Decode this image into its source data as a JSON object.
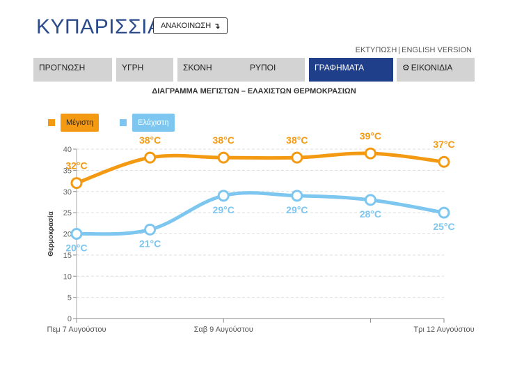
{
  "header": {
    "title": "ΚΥΠΑΡΙΣΣΙΑ",
    "announce_label": "ΑΝΑΚΟΙΝΩΣΗ",
    "announce_icon": "arrow-down-turn-icon"
  },
  "links": {
    "print": "ΕΚΤΥΠΩΣΗ",
    "separator": "|",
    "english": "ENGLISH VERSION"
  },
  "nav": {
    "tabs": [
      {
        "label": "ΠΡΟΓΝΩΣΗ"
      },
      {
        "label": "ΥΓΡΗ"
      },
      {
        "label": "ΣΚΟΝΗ"
      },
      {
        "label": "ΡΥΠΟΙ"
      },
      {
        "label": "ΓΡΑΦΗΜΑΤΑ"
      },
      {
        "label": "ΕΙΚΟΝΙΔΙΑ"
      }
    ],
    "active_tab": "ΓΡΑΦΗΜΑΤΑ",
    "icons_tab_icon": "gear-icon"
  },
  "colors": {
    "max": "#f49a12",
    "min": "#7cc6f0",
    "active_tab": "#1f3f8b",
    "title": "#2b4a8b"
  },
  "chart_data": {
    "type": "line",
    "title": "ΔΙΑΓΡΑΜΜΑ ΜΕΓΙΣΤΩΝ – ΕΛΑΧΙΣΤΩΝ ΘΕΡΜΟΚΡΑΣΙΩΝ",
    "ylabel": "Θερμοκρασία",
    "xlabel": "",
    "ylim": [
      0,
      40
    ],
    "yticks": [
      0,
      5,
      10,
      15,
      20,
      25,
      30,
      35,
      40
    ],
    "x": [
      0,
      1,
      2,
      3,
      4,
      5
    ],
    "xtick_labels": [
      {
        "x": 0,
        "label": "Πεμ 7 Αυγούστου"
      },
      {
        "x": 2,
        "label": "Σαβ 9 Αυγούστου"
      },
      {
        "x": 5,
        "label": "Τρι 12 Αυγούστου"
      }
    ],
    "series": [
      {
        "name": "Μέγιστη",
        "values": [
          32,
          38,
          38,
          38,
          39,
          37
        ],
        "labels": [
          "32°C",
          "38°C",
          "38°C",
          "38°C",
          "39°C",
          "37°C"
        ]
      },
      {
        "name": "Ελάχιστη",
        "values": [
          20,
          21,
          29,
          29,
          28,
          25
        ],
        "labels": [
          "20°C",
          "21°C",
          "29°C",
          "29°C",
          "28°C",
          "25°C"
        ]
      }
    ],
    "grid": true,
    "legend_position": "top-left"
  }
}
